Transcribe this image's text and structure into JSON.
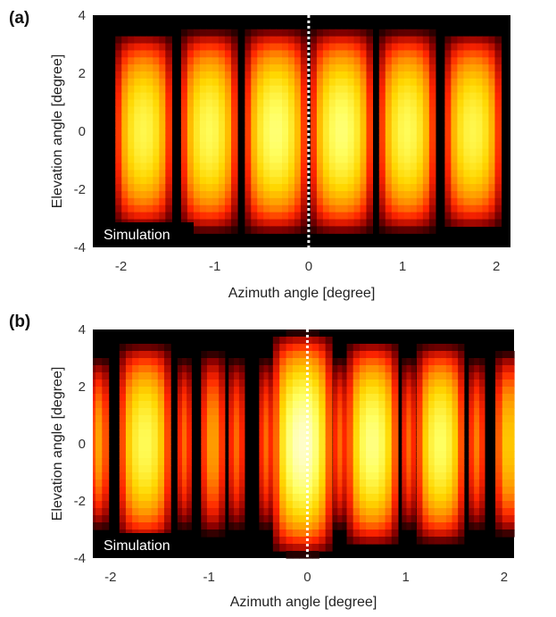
{
  "figure": {
    "panels": [
      {
        "letter": "(a)",
        "label": "Simulation"
      },
      {
        "letter": "(b)",
        "label": "Simulation"
      }
    ]
  },
  "colors": {
    "colormap": "hot",
    "colormap_stops": [
      "#000000",
      "#8b0000",
      "#ff2400",
      "#ff8c00",
      "#ffd700",
      "#ffff60",
      "#fffde0"
    ],
    "marker_line": "#ffffff"
  },
  "chart_data": [
    {
      "type": "heatmap",
      "title": "",
      "xlabel": "Azimuth angle [degree]",
      "ylabel": "Elevation angle [degree]",
      "xlim": [
        -2.3,
        2.15
      ],
      "ylim": [
        -4,
        4
      ],
      "xticks": [
        -2,
        -1,
        0,
        1,
        2
      ],
      "yticks": [
        -4,
        -2,
        0,
        2,
        4
      ],
      "grid": false,
      "reference_line": {
        "x": 0,
        "style": "dotted",
        "color": "white"
      },
      "annotation": "Simulation",
      "lobes": [
        {
          "center": -1.76,
          "half_width": 0.3,
          "peak": 0.8,
          "half_height": 3.4
        },
        {
          "center": -1.06,
          "half_width": 0.3,
          "peak": 0.82,
          "half_height": 3.5
        },
        {
          "center": -0.35,
          "half_width": 0.33,
          "peak": 0.86,
          "half_height": 3.55
        },
        {
          "center": 0.35,
          "half_width": 0.33,
          "peak": 0.86,
          "half_height": 3.55
        },
        {
          "center": 1.05,
          "half_width": 0.3,
          "peak": 0.82,
          "half_height": 3.5
        },
        {
          "center": 1.75,
          "half_width": 0.3,
          "peak": 0.8,
          "half_height": 3.4
        }
      ]
    },
    {
      "type": "heatmap",
      "title": "",
      "xlabel": "Azimuth angle [degree]",
      "ylabel": "Elevation angle [degree]",
      "xlim": [
        -2.18,
        2.1
      ],
      "ylim": [
        -4,
        4
      ],
      "xticks": [
        -2,
        -1,
        0,
        1,
        2
      ],
      "yticks": [
        -4,
        -2,
        0,
        2,
        4
      ],
      "grid": false,
      "reference_line": {
        "x": 0,
        "style": "dotted",
        "color": "white"
      },
      "annotation": "Simulation",
      "lobes": [
        {
          "center": -2.12,
          "half_width": 0.1,
          "peak": 0.55,
          "half_height": 3.0
        },
        {
          "center": -1.65,
          "half_width": 0.26,
          "peak": 0.82,
          "half_height": 3.5
        },
        {
          "center": -1.25,
          "half_width": 0.07,
          "peak": 0.45,
          "half_height": 3.0
        },
        {
          "center": -0.96,
          "half_width": 0.12,
          "peak": 0.55,
          "half_height": 3.2
        },
        {
          "center": -0.72,
          "half_width": 0.08,
          "peak": 0.45,
          "half_height": 3.0
        },
        {
          "center": -0.42,
          "half_width": 0.07,
          "peak": 0.45,
          "half_height": 3.0
        },
        {
          "center": -0.05,
          "half_width": 0.3,
          "peak": 0.97,
          "half_height": 3.9
        },
        {
          "center": 0.33,
          "half_width": 0.07,
          "peak": 0.45,
          "half_height": 3.0
        },
        {
          "center": 0.66,
          "half_width": 0.26,
          "peak": 0.88,
          "half_height": 3.6
        },
        {
          "center": 1.03,
          "half_width": 0.07,
          "peak": 0.45,
          "half_height": 3.0
        },
        {
          "center": 1.35,
          "half_width": 0.24,
          "peak": 0.84,
          "half_height": 3.5
        },
        {
          "center": 1.72,
          "half_width": 0.08,
          "peak": 0.48,
          "half_height": 3.0
        },
        {
          "center": 2.05,
          "half_width": 0.14,
          "peak": 0.65,
          "half_height": 3.2
        }
      ]
    }
  ]
}
